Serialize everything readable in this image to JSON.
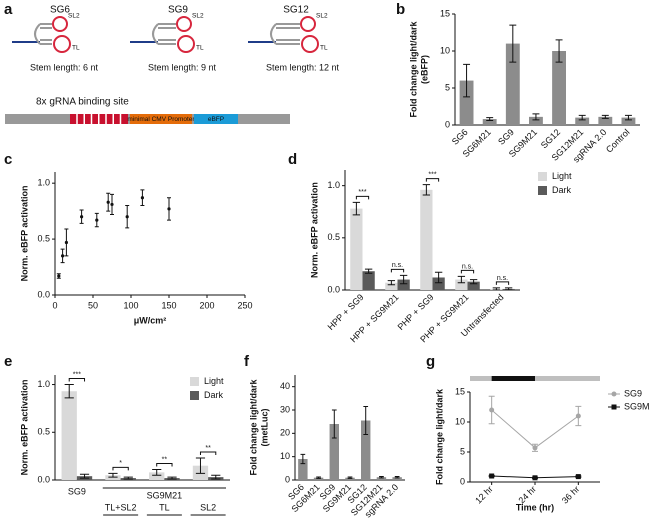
{
  "diagram": {
    "letter": "a",
    "constructs": [
      {
        "name": "SG6",
        "sl2": "SL2",
        "tl": "TL",
        "stem": "Stem length: 6 nt"
      },
      {
        "name": "SG9",
        "sl2": "SL2",
        "tl": "TL",
        "stem": "Stem length: 9 nt"
      },
      {
        "name": "SG12",
        "sl2": "SL2",
        "tl": "TL",
        "stem": "Stem length: 12 nt"
      }
    ],
    "plasmid": {
      "binding_site": "8x gRNA binding site",
      "promoter": "minimal CMV Promoter",
      "reporter": "eBFP"
    }
  },
  "chart_data": [
    {
      "letter": "b",
      "type": "bar",
      "ylabel": [
        "Fold change light/dark",
        "(eBFP)"
      ],
      "categories": [
        "SG6",
        "SG6M21",
        "SG9",
        "SG9M21",
        "SG12",
        "SG12M21",
        "sgRNA 2.0",
        "Control"
      ],
      "values": [
        6,
        0.8,
        11,
        1.1,
        10,
        1.0,
        1.1,
        1.0
      ],
      "errors": [
        2.2,
        0.2,
        2.5,
        0.4,
        1.5,
        0.3,
        0.2,
        0.3
      ],
      "color": "#8c8c8c",
      "ylim": [
        0,
        15
      ],
      "yticks": [
        0,
        5,
        10,
        15
      ]
    },
    {
      "letter": "c",
      "type": "scatter",
      "ylabel": "Norm. eBFP activation",
      "xlabel": "μW/cm²",
      "x": [
        5,
        10,
        15,
        35,
        55,
        70,
        75,
        95,
        115,
        150
      ],
      "values": [
        0.17,
        0.35,
        0.47,
        0.7,
        0.67,
        0.83,
        0.81,
        0.7,
        0.87,
        0.77
      ],
      "errors": [
        0.02,
        0.06,
        0.12,
        0.06,
        0.06,
        0.08,
        0.09,
        0.1,
        0.07,
        0.1
      ],
      "color": "#111111",
      "xlim": [
        0,
        250
      ],
      "xticks": [
        0,
        50,
        100,
        150,
        200,
        250
      ],
      "ylim": [
        0,
        1.1
      ],
      "yticks": [
        {
          "value": 0,
          "label": "0.0"
        },
        {
          "value": 0.5,
          "label": "0.5"
        },
        {
          "value": 1,
          "label": "1.0"
        }
      ]
    },
    {
      "letter": "d",
      "type": "bar",
      "ylabel": "Norm. eBFP activation",
      "legend": "outside right",
      "categories": [
        "HPP + SG9",
        "HPP + SG9M21",
        "PHP + SG9",
        "PHP + SG9M21",
        "Untransfected"
      ],
      "series": [
        {
          "name": "Light",
          "color": "#d9d9d9",
          "values": [
            0.78,
            0.07,
            0.96,
            0.1,
            0.01
          ],
          "errors": [
            0.06,
            0.02,
            0.05,
            0.03,
            0.01
          ]
        },
        {
          "name": "Dark",
          "color": "#5a5a5a",
          "values": [
            0.18,
            0.1,
            0.12,
            0.08,
            0.01
          ],
          "errors": [
            0.02,
            0.04,
            0.05,
            0.02,
            0.01
          ]
        }
      ],
      "annotations": [
        "***",
        "n.s.",
        "***",
        "n.s.",
        "n.s."
      ],
      "ylim": [
        0,
        1.15
      ],
      "yticks": [
        {
          "value": 0,
          "label": "0.0"
        },
        {
          "value": 0.5,
          "label": "0.5"
        },
        {
          "value": 1,
          "label": "1.0"
        }
      ]
    },
    {
      "letter": "e",
      "type": "bar",
      "ylabel": "Norm. eBFP activation",
      "legend": "upper right",
      "categories": [
        "SG9",
        "TL+SL2",
        "TL",
        "SL2"
      ],
      "group_label": "SG9M21",
      "series": [
        {
          "name": "Light",
          "color": "#d9d9d9",
          "values": [
            0.93,
            0.05,
            0.08,
            0.15
          ],
          "errors": [
            0.07,
            0.02,
            0.03,
            0.08
          ]
        },
        {
          "name": "Dark",
          "color": "#5a5a5a",
          "values": [
            0.04,
            0.02,
            0.02,
            0.03
          ],
          "errors": [
            0.02,
            0.01,
            0.01,
            0.02
          ]
        }
      ],
      "annotations": [
        "***",
        "*",
        "**",
        "**"
      ],
      "ylim": [
        0,
        1.1
      ],
      "yticks": [
        {
          "value": 0,
          "label": "0.0"
        },
        {
          "value": 0.5,
          "label": "0.5"
        },
        {
          "value": 1,
          "label": "1.0"
        }
      ]
    },
    {
      "letter": "f",
      "type": "bar",
      "ylabel": [
        "Fold change light/dark",
        "(metLuc)"
      ],
      "categories": [
        "SG6",
        "SG6M21",
        "SG9",
        "SG9M21",
        "SG12",
        "SG12M21",
        "sgRNA 2.0"
      ],
      "values": [
        9,
        1,
        24,
        1,
        25.5,
        1.2,
        1.2
      ],
      "errors": [
        2,
        0.3,
        6,
        0.3,
        6,
        0.3,
        0.3
      ],
      "color": "#8c8c8c",
      "ylim": [
        0,
        45
      ],
      "yticks": [
        0,
        10,
        20,
        30,
        40
      ]
    },
    {
      "letter": "g",
      "type": "line",
      "ylabel": "Fold change light/dark",
      "xlabel": "Time (hr)",
      "legend": "upper right",
      "categories": [
        "12 hr",
        "24 hr",
        "36 hr"
      ],
      "series": [
        {
          "name": "SG9",
          "color": "#a6a6a6",
          "marker": "circle",
          "values": [
            12,
            5.7,
            11
          ],
          "errors": [
            2.3,
            0.6,
            1.6
          ]
        },
        {
          "name": "SG9M21",
          "color": "#111111",
          "marker": "square",
          "values": [
            1,
            0.7,
            0.9
          ],
          "errors": [
            0.1,
            0.1,
            0.1
          ]
        }
      ],
      "ylim": [
        0,
        15
      ],
      "yticks": [
        0,
        5,
        10,
        15
      ]
    }
  ]
}
